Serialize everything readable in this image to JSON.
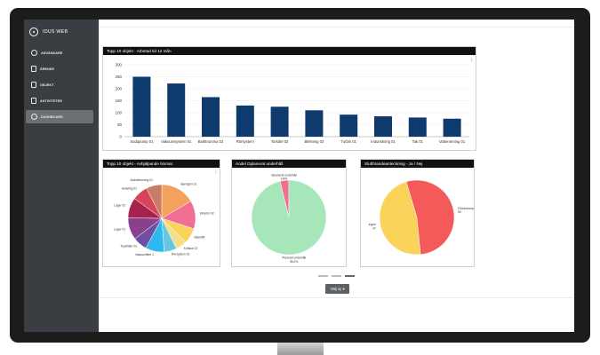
{
  "app": {
    "name": "IDUS WEB"
  },
  "nav": {
    "items": [
      {
        "label": "ANVÄNDARE",
        "icon": "user-icon"
      },
      {
        "label": "ÄRENDE",
        "icon": "document-icon"
      },
      {
        "label": "OBJEKT",
        "icon": "object-icon"
      },
      {
        "label": "AKTIVITETER",
        "icon": "activity-icon"
      },
      {
        "label": "DASHBOARD",
        "icon": "dashboard-icon",
        "active": true
      }
    ]
  },
  "charts": {
    "top10_worktime": {
      "title": "Topp 10 objekt - Arbetad tid 12 mån",
      "chart_data": {
        "type": "bar",
        "categories": [
          "Sodapump 01",
          "Vakuumsystem 01",
          "Barktrumma 02",
          "Rörsystem",
          "Torkdel 03",
          "Blekning 03",
          "Turbin 01",
          "Indunstning 01",
          "Tak 01",
          "Vattenrening 01"
        ],
        "values": [
          250,
          222,
          165,
          130,
          125,
          110,
          92,
          85,
          80,
          75
        ],
        "yticks": [
          "0",
          "50",
          "100",
          "150",
          "200",
          "250",
          "300"
        ],
        "ylim": [
          0,
          300
        ],
        "color": "#0e3a6e"
      }
    },
    "top10_maintenance": {
      "title": "Topp 10 objekt - Avhjälpande timmar",
      "chart_data": {
        "type": "pie",
        "labels": [
          "Barrsgen 01",
          "Elmotor 02",
          "Blandfilt",
          "Kofisse 02",
          "Rörsystem 01",
          "Vakuumfilter 1",
          "Tryckfilter 03",
          "Lager 01",
          "Lager 02",
          "Avdeling 01",
          "Avdoktrimning 01"
        ],
        "values": [
          22,
          18,
          10,
          7,
          8,
          12,
          9,
          14,
          13,
          10,
          10
        ],
        "colors": [
          "#f2a25c",
          "#f06f93",
          "#fbd35a",
          "#f5e08a",
          "#68c7e0",
          "#2db8f0",
          "#6e4fa3",
          "#8b3f8f",
          "#a4244f",
          "#d9435a",
          "#c97b63"
        ]
      }
    },
    "planned_share": {
      "title": "Andel  Oplanerat underhåll",
      "chart_data": {
        "type": "pie",
        "labels": [
          "Oplanerat underhåll",
          "Planerat underhåll"
        ],
        "values": [
          3.8,
          96.2
        ],
        "value_labels": [
          "3.8%",
          "96.2%"
        ],
        "colors": [
          "#f06f93",
          "#a7e6b9"
        ]
      }
    },
    "completion_note": {
      "title": "Slutförandeanteckning - Ja / Nej",
      "chart_data": {
        "type": "pie",
        "labels": [
          "Ingen",
          "Förekommande"
        ],
        "values": [
          47,
          53
        ],
        "value_labels": [
          "47",
          "53"
        ],
        "colors": [
          "#fbd35a",
          "#f45a5a"
        ]
      }
    }
  },
  "view_button": {
    "label": "Välj vy ▾"
  }
}
